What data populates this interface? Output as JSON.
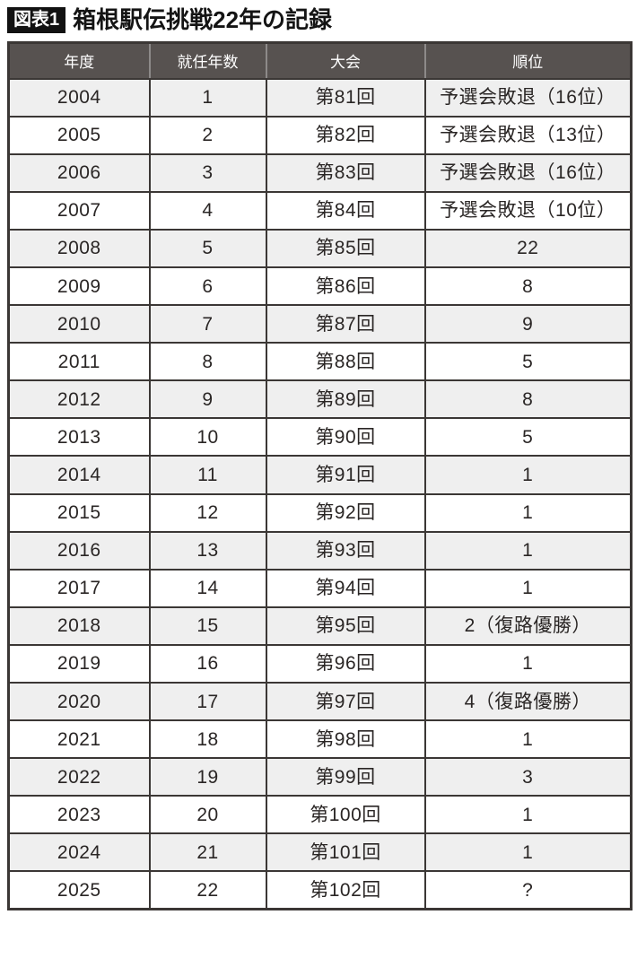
{
  "figure": {
    "label": "図表1",
    "title": "箱根駅伝挑戦22年の記録"
  },
  "colors": {
    "header_bg": "#575250",
    "row_stripe": "#efefef",
    "border": "#3b3735",
    "header_sep": "#8d8a89",
    "badge_bg": "#121212",
    "text": "#2a2625"
  },
  "chart_data": {
    "type": "table",
    "figure_label": "図表1",
    "title": "箱根駅伝挑戦22年の記録",
    "columns": [
      "年度",
      "就任年数",
      "大会",
      "順位"
    ],
    "rows": [
      [
        "2004",
        "1",
        "第81回",
        "予選会敗退（16位）"
      ],
      [
        "2005",
        "2",
        "第82回",
        "予選会敗退（13位）"
      ],
      [
        "2006",
        "3",
        "第83回",
        "予選会敗退（16位）"
      ],
      [
        "2007",
        "4",
        "第84回",
        "予選会敗退（10位）"
      ],
      [
        "2008",
        "5",
        "第85回",
        "22"
      ],
      [
        "2009",
        "6",
        "第86回",
        "8"
      ],
      [
        "2010",
        "7",
        "第87回",
        "9"
      ],
      [
        "2011",
        "8",
        "第88回",
        "5"
      ],
      [
        "2012",
        "9",
        "第89回",
        "8"
      ],
      [
        "2013",
        "10",
        "第90回",
        "5"
      ],
      [
        "2014",
        "11",
        "第91回",
        "1"
      ],
      [
        "2015",
        "12",
        "第92回",
        "1"
      ],
      [
        "2016",
        "13",
        "第93回",
        "1"
      ],
      [
        "2017",
        "14",
        "第94回",
        "1"
      ],
      [
        "2018",
        "15",
        "第95回",
        "2（復路優勝）"
      ],
      [
        "2019",
        "16",
        "第96回",
        "1"
      ],
      [
        "2020",
        "17",
        "第97回",
        "4（復路優勝）"
      ],
      [
        "2021",
        "18",
        "第98回",
        "1"
      ],
      [
        "2022",
        "19",
        "第99回",
        "3"
      ],
      [
        "2023",
        "20",
        "第100回",
        "1"
      ],
      [
        "2024",
        "21",
        "第101回",
        "1"
      ],
      [
        "2025",
        "22",
        "第102回",
        "?"
      ]
    ]
  }
}
